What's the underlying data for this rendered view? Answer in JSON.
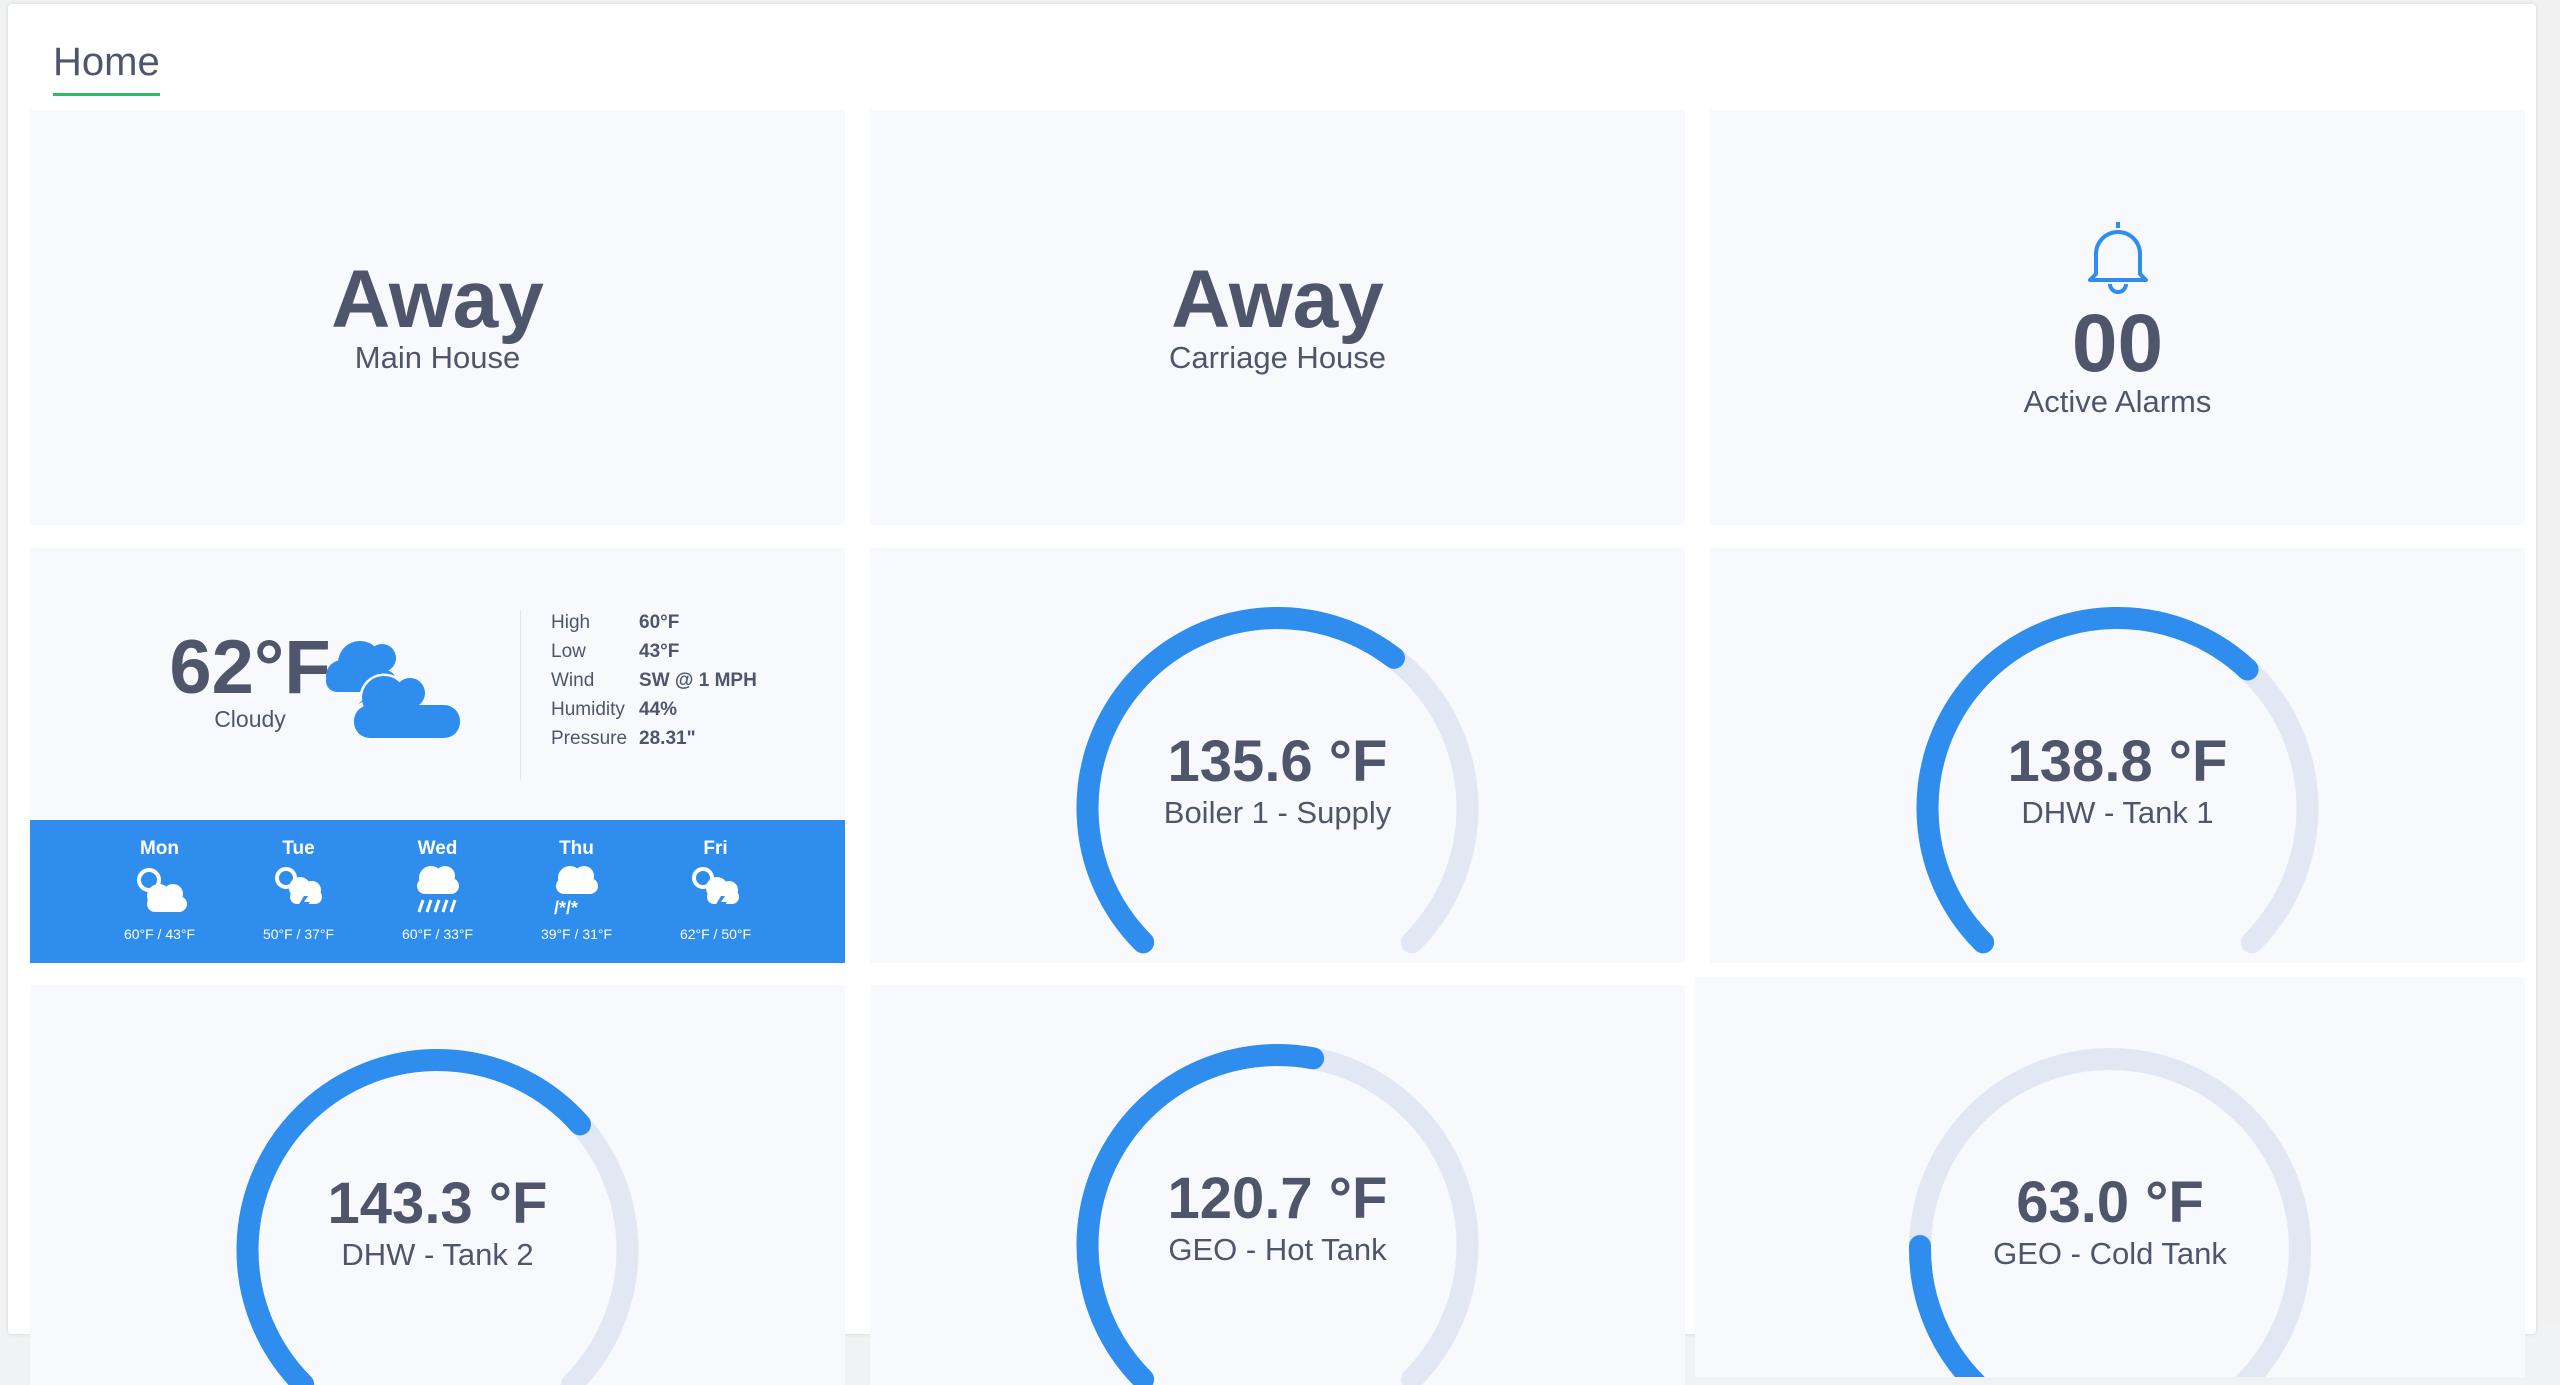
{
  "page": {
    "title": "Home"
  },
  "colors": {
    "accent": "#2e8ded",
    "track": "#e1e8f3",
    "text": "#4f566b",
    "tab_underline": "#2dbb6a"
  },
  "modes": [
    {
      "value": "Away",
      "label": "Main House"
    },
    {
      "value": "Away",
      "label": "Carriage House"
    }
  ],
  "alarms": {
    "icon": "bell-icon",
    "count": "00",
    "label": "Active Alarms"
  },
  "weather": {
    "temp": "62°F",
    "condition": "Cloudy",
    "icon": "cloudy-icon",
    "stats": [
      {
        "label": "High",
        "value": "60°F"
      },
      {
        "label": "Low",
        "value": "43°F"
      },
      {
        "label": "Wind",
        "value": "SW @ 1 MPH"
      },
      {
        "label": "Humidity",
        "value": "44%"
      },
      {
        "label": "Pressure",
        "value": "28.31\""
      }
    ],
    "forecast": [
      {
        "day": "Mon",
        "icon": "partly-cloudy-icon",
        "temps": "60°F / 43°F"
      },
      {
        "day": "Tue",
        "icon": "thunderstorm-sun-icon",
        "temps": "50°F / 37°F"
      },
      {
        "day": "Wed",
        "icon": "rain-icon",
        "temps": "60°F / 33°F"
      },
      {
        "day": "Thu",
        "icon": "snow-rain-icon",
        "temps": "39°F / 31°F"
      },
      {
        "day": "Fri",
        "icon": "thunderstorm-sun-icon",
        "temps": "62°F / 50°F"
      }
    ]
  },
  "gauges": [
    {
      "value": "135.6 °F",
      "label": "Boiler 1 - Supply",
      "fill_fraction": 0.64
    },
    {
      "value": "138.8 °F",
      "label": "DHW - Tank 1",
      "fill_fraction": 0.66
    },
    {
      "value": "143.3 °F",
      "label": "DHW - Tank 2",
      "fill_fraction": 0.68
    },
    {
      "value": "120.7 °F",
      "label": "GEO - Hot Tank",
      "fill_fraction": 0.54
    },
    {
      "value": "63.0 °F",
      "label": "GEO - Cold Tank",
      "fill_fraction": 0.17
    }
  ]
}
